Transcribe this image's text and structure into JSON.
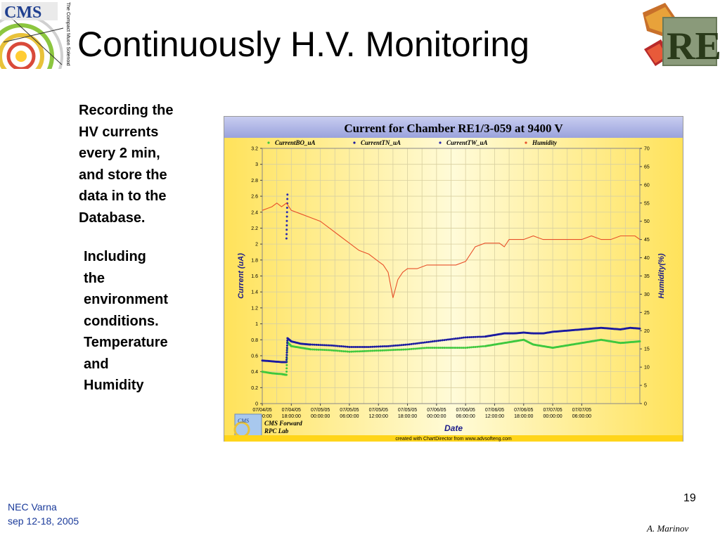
{
  "slide": {
    "title": "Continuously H.V. Monitoring",
    "bullet1": "Recording the\nHV currents\nevery 2 min,\nand store the\ndata in to the\nDatabase.",
    "bullet2": "Including\nthe\nenvironment\nconditions.\nTemperature\nand\nHumidity",
    "page_number": "19",
    "footer_left": "NEC Varna\nsep 12-18, 2005",
    "author": "A. Marinov",
    "logo_left_text": "CMS",
    "logo_left_subtitle": "The Compact Muon Solenoid",
    "logo_right_text": "RE"
  },
  "chart_data": {
    "type": "line",
    "title": "Current for Chamber RE1/3-059 at 9400 V",
    "xlabel": "Date",
    "ylabel": "Current (uA)",
    "y2label": "Humidity(%)",
    "ylim": [
      0,
      3.2
    ],
    "y2lim": [
      0,
      70
    ],
    "yticks": [
      "0",
      "0.2",
      "0.4",
      "0.6",
      "0.8",
      "1",
      "1.2",
      "1.4",
      "1.6",
      "1.8",
      "2",
      "2.2",
      "2.4",
      "2.6",
      "2.8",
      "3",
      "3.2"
    ],
    "y2ticks": [
      "0",
      "5",
      "10",
      "15",
      "20",
      "25",
      "30",
      "35",
      "40",
      "45",
      "50",
      "55",
      "60",
      "65",
      "70"
    ],
    "xticks": [
      {
        "d": "07/04/05",
        "t": "12:00:00"
      },
      {
        "d": "07/04/05",
        "t": "18:00:00"
      },
      {
        "d": "07/05/05",
        "t": "00:00:00"
      },
      {
        "d": "07/05/05",
        "t": "06:00:00"
      },
      {
        "d": "07/05/05",
        "t": "12:00:00"
      },
      {
        "d": "07/05/05",
        "t": "18:00:00"
      },
      {
        "d": "07/06/05",
        "t": "00:00:00"
      },
      {
        "d": "07/06/05",
        "t": "06:00:00"
      },
      {
        "d": "07/06/05",
        "t": "12:00:00"
      },
      {
        "d": "07/06/05",
        "t": "18:00:00"
      },
      {
        "d": "07/07/05",
        "t": "00:00:00"
      },
      {
        "d": "07/07/05",
        "t": "06:00:00"
      }
    ],
    "xlim_hours": [
      0,
      78
    ],
    "series": [
      {
        "name": "CurrentBO_uA",
        "color": "#3ec83e",
        "axis": "left",
        "style": "dots",
        "x": [
          0,
          2,
          4,
          5,
          5.2,
          6,
          8,
          10,
          14,
          18,
          22,
          26,
          30,
          34,
          38,
          42,
          46,
          48,
          50,
          52,
          54,
          56,
          58,
          60,
          62,
          64,
          66,
          68,
          70,
          72,
          74,
          76,
          78
        ],
        "y": [
          0.4,
          0.38,
          0.37,
          0.36,
          0.77,
          0.72,
          0.7,
          0.68,
          0.67,
          0.65,
          0.66,
          0.67,
          0.68,
          0.7,
          0.7,
          0.7,
          0.72,
          0.74,
          0.76,
          0.78,
          0.8,
          0.74,
          0.72,
          0.7,
          0.72,
          0.74,
          0.76,
          0.78,
          0.8,
          0.78,
          0.76,
          0.77,
          0.78
        ]
      },
      {
        "name": "CurrentTN_uA",
        "color": "#1a1aa0",
        "axis": "left",
        "style": "dots",
        "x": [
          0,
          2,
          4,
          5,
          5.2,
          6,
          8,
          10,
          14,
          18,
          22,
          26,
          30,
          34,
          38,
          42,
          46,
          48,
          50,
          52,
          54,
          56,
          58,
          60,
          62,
          64,
          66,
          68,
          70,
          72,
          74,
          76,
          78
        ],
        "y": [
          0.54,
          0.53,
          0.52,
          0.52,
          0.82,
          0.78,
          0.75,
          0.74,
          0.73,
          0.71,
          0.71,
          0.72,
          0.74,
          0.77,
          0.8,
          0.83,
          0.84,
          0.86,
          0.88,
          0.88,
          0.89,
          0.88,
          0.88,
          0.9,
          0.91,
          0.92,
          0.93,
          0.94,
          0.95,
          0.94,
          0.93,
          0.95,
          0.94
        ]
      },
      {
        "name": "CurrentTW_uA",
        "color": "#2a2ab0",
        "axis": "left",
        "style": "dots",
        "x": [
          5,
          5.2
        ],
        "y": [
          2.07,
          2.62
        ]
      },
      {
        "name": "Humidity",
        "color": "#e8502a",
        "axis": "right",
        "style": "line",
        "x": [
          0,
          2,
          3,
          4,
          5,
          6,
          8,
          10,
          12,
          14,
          16,
          18,
          20,
          22,
          23,
          24,
          25,
          26,
          27,
          28,
          29,
          30,
          31,
          32,
          34,
          36,
          38,
          40,
          42,
          44,
          46,
          48,
          49,
          50,
          51,
          52,
          53,
          54,
          56,
          58,
          60,
          62,
          64,
          66,
          68,
          70,
          72,
          74,
          76,
          77,
          78
        ],
        "y": [
          53,
          54,
          55,
          54,
          55,
          53,
          52,
          51,
          50,
          48,
          46,
          44,
          42,
          41,
          40,
          39,
          38,
          36,
          29,
          34,
          36,
          37,
          37,
          37,
          38,
          38,
          38,
          38,
          39,
          43,
          44,
          44,
          44,
          43,
          45,
          45,
          45,
          45,
          46,
          45,
          45,
          45,
          45,
          45,
          46,
          45,
          45,
          46,
          46,
          46,
          45
        ]
      }
    ],
    "legend_position": "top",
    "grid": true,
    "branding_text": "CMS Forward\nRPC Lab",
    "credit": "created with ChartDirector from www.advsofteng.com"
  }
}
